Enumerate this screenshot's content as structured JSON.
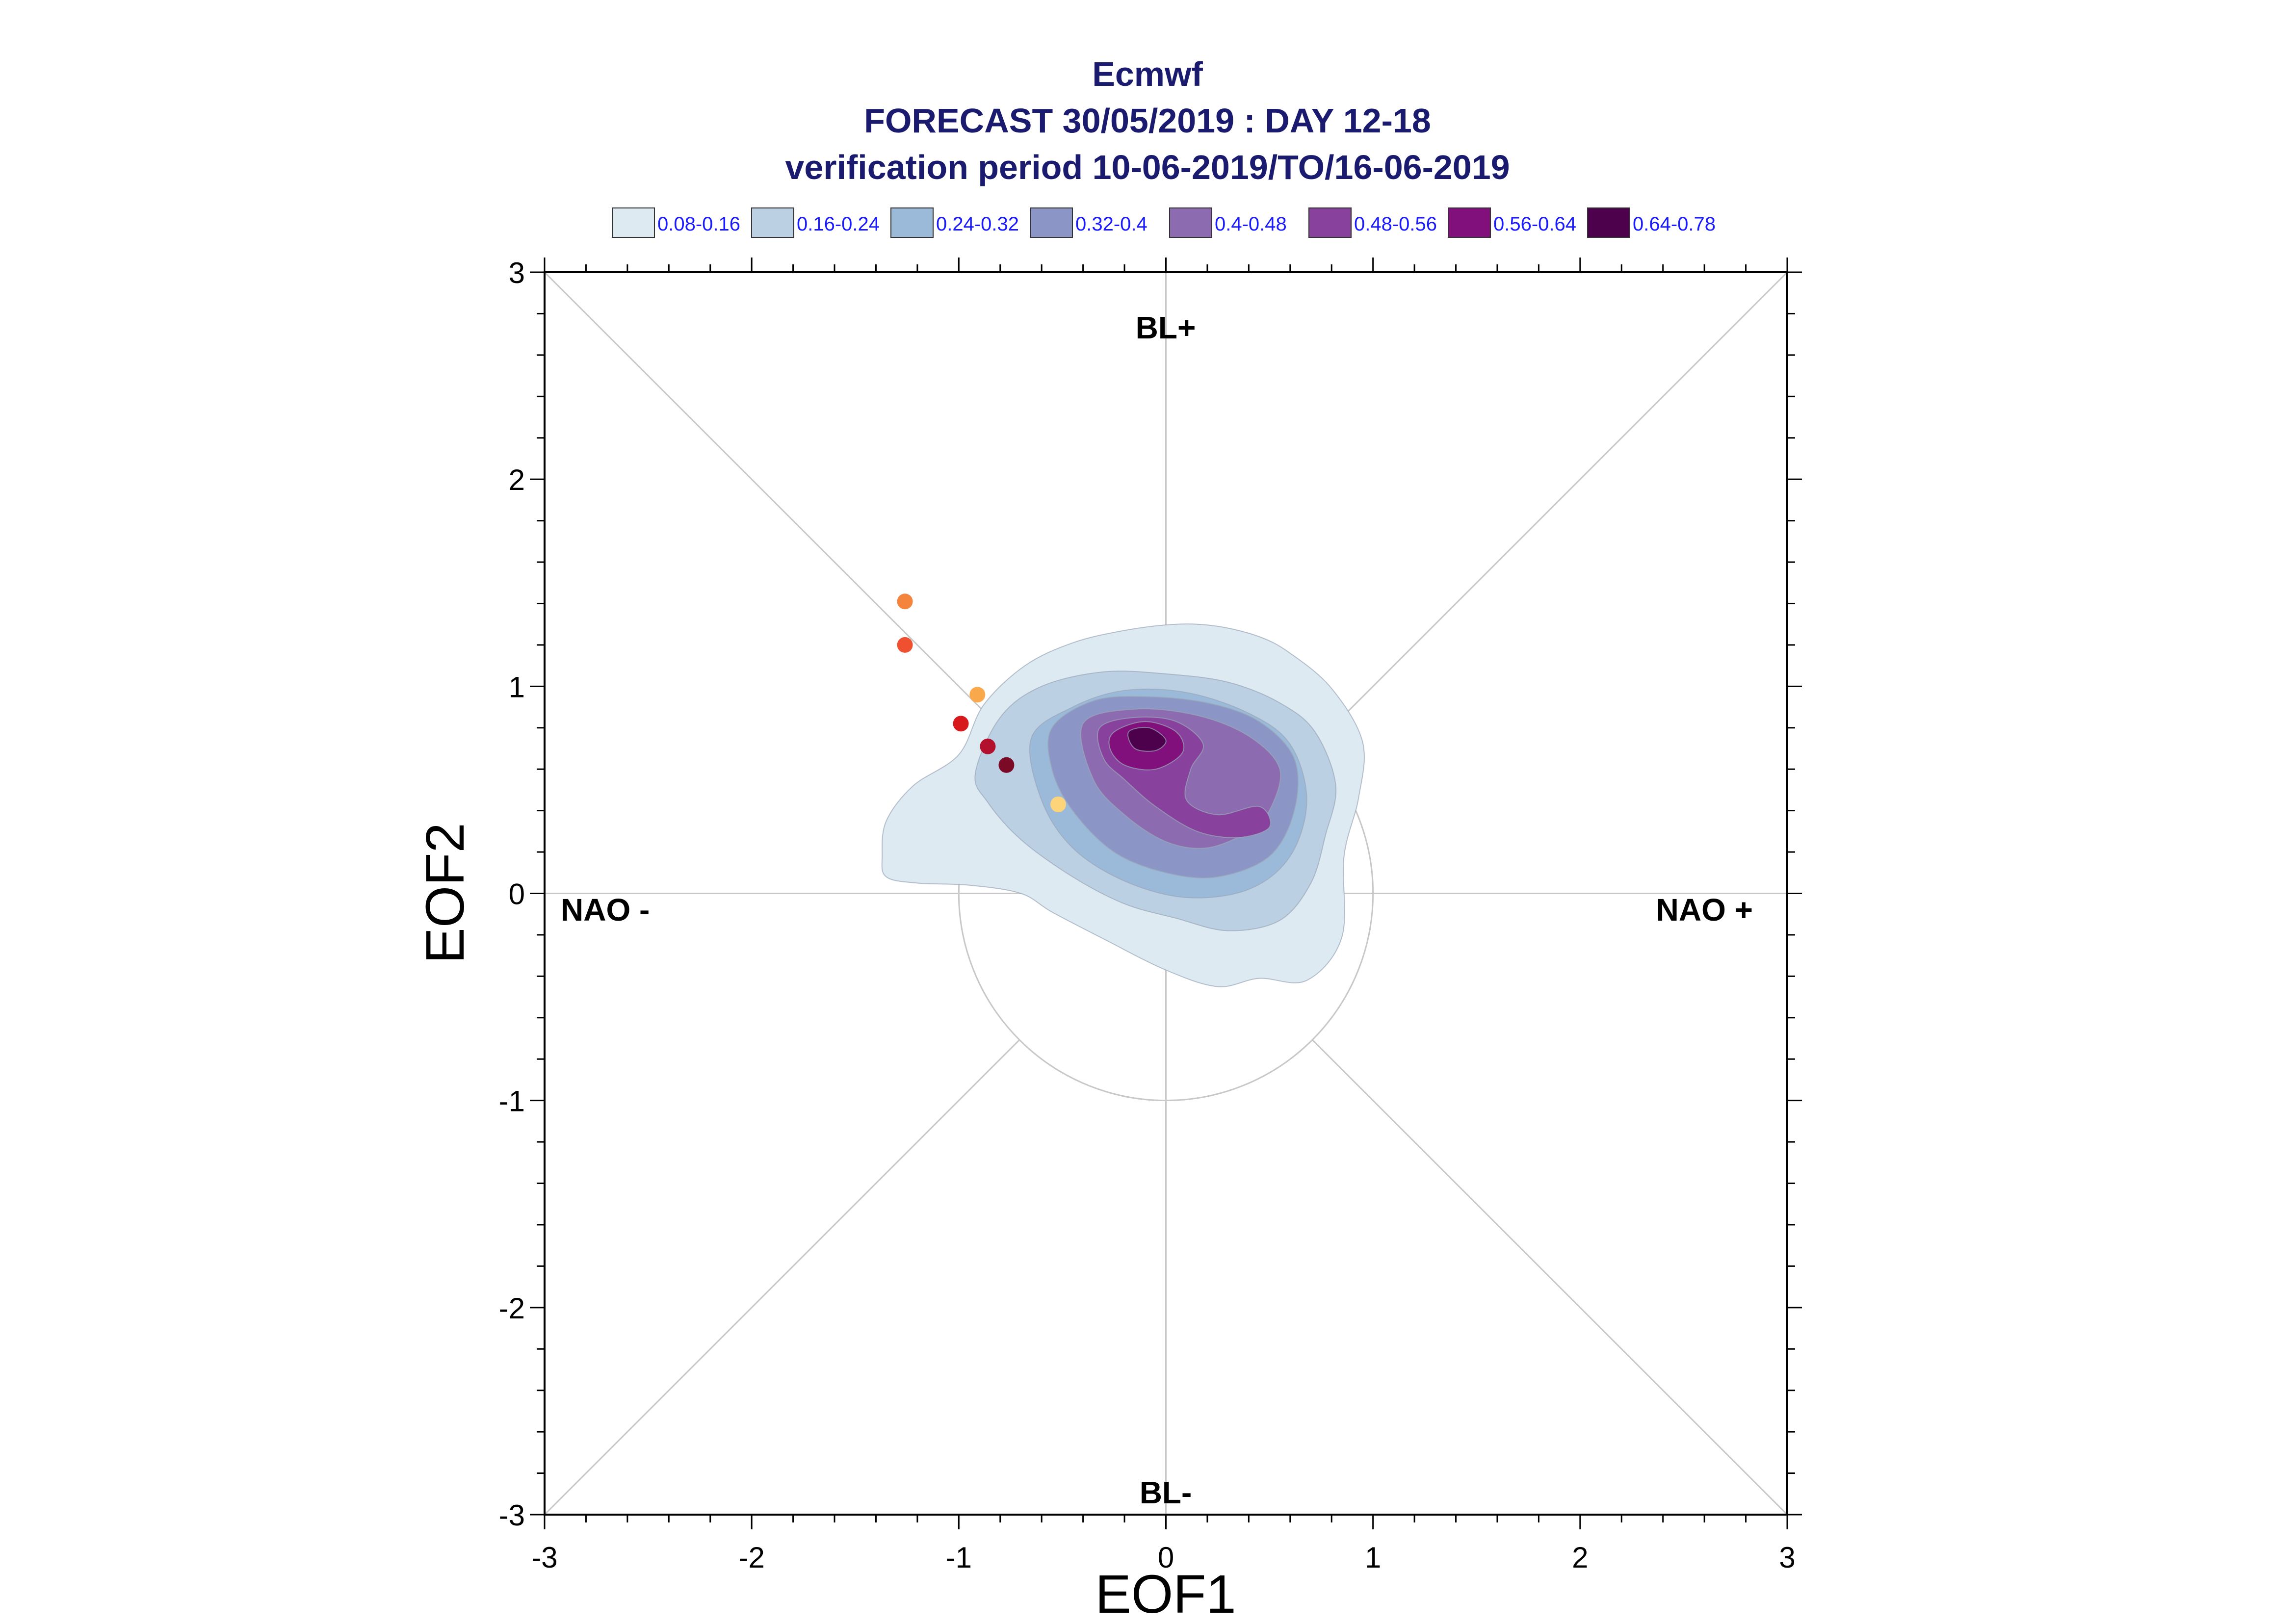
{
  "chart_data": {
    "type": "scatter",
    "title": "Ecmwf",
    "subtitle": "FORECAST 30/05/2019 : DAY 12-18",
    "subtitle2": "verification period 10-06-2019/TO/16-06-2019",
    "xlabel": "EOF1",
    "ylabel": "EOF2",
    "xlim": [
      -3,
      3
    ],
    "ylim": [
      -3,
      3
    ],
    "x_ticks": [
      "-3",
      "-2",
      "-1",
      "0",
      "1",
      "2",
      "3"
    ],
    "y_ticks": [
      "-3",
      "-2",
      "-1",
      "0",
      "1",
      "2",
      "3"
    ],
    "grid": false,
    "legend_position": "top",
    "regime_labels": {
      "top": "BL+",
      "bottom": "BL-",
      "left": "NAO -",
      "right": "NAO +"
    },
    "density_levels": [
      {
        "label": "0.08-0.16",
        "color": "#deeaf2"
      },
      {
        "label": "0.16-0.24",
        "color": "#bcd0e3"
      },
      {
        "label": "0.24-0.32",
        "color": "#9bbad9"
      },
      {
        "label": "0.32-0.4",
        "color": "#8c96c6"
      },
      {
        "label": "0.4-0.48",
        "color": "#8c6bb1"
      },
      {
        "label": "0.48-0.56",
        "color": "#88419d"
      },
      {
        "label": "0.56-0.64",
        "color": "#810f7c"
      },
      {
        "label": "0.64-0.78",
        "color": "#4d004b"
      }
    ],
    "points": [
      {
        "x": -1.26,
        "y": 1.41,
        "color": "#f4843c"
      },
      {
        "x": -1.26,
        "y": 1.2,
        "color": "#ef5130"
      },
      {
        "x": -0.91,
        "y": 0.96,
        "color": "#f9a94b"
      },
      {
        "x": -0.99,
        "y": 0.82,
        "color": "#d7191c"
      },
      {
        "x": -0.86,
        "y": 0.71,
        "color": "#b2102d"
      },
      {
        "x": -0.77,
        "y": 0.62,
        "color": "#7a0a26"
      },
      {
        "x": -0.52,
        "y": 0.43,
        "color": "#fdd47a"
      }
    ],
    "density_contours": [
      [
        [
          -1.37,
          0.18
        ],
        [
          -1.35,
          0.35
        ],
        [
          -1.22,
          0.52
        ],
        [
          -1.0,
          0.67
        ],
        [
          -0.88,
          0.91
        ],
        [
          -0.68,
          1.1
        ],
        [
          -0.45,
          1.21
        ],
        [
          -0.2,
          1.27
        ],
        [
          0.05,
          1.3
        ],
        [
          0.25,
          1.29
        ],
        [
          0.45,
          1.24
        ],
        [
          0.6,
          1.16
        ],
        [
          0.8,
          0.99
        ],
        [
          0.95,
          0.73
        ],
        [
          0.93,
          0.46
        ],
        [
          0.86,
          0.18
        ],
        [
          0.85,
          -0.21
        ],
        [
          0.68,
          -0.42
        ],
        [
          0.45,
          -0.41
        ],
        [
          0.25,
          -0.45
        ],
        [
          0.0,
          -0.37
        ],
        [
          -0.3,
          -0.22
        ],
        [
          -0.55,
          -0.09
        ],
        [
          -0.7,
          0.0
        ],
        [
          -0.95,
          0.04
        ],
        [
          -1.2,
          0.05
        ],
        [
          -1.35,
          0.08
        ]
      ],
      [
        [
          -0.92,
          0.58
        ],
        [
          -0.8,
          0.85
        ],
        [
          -0.6,
          1.0
        ],
        [
          -0.3,
          1.07
        ],
        [
          0.0,
          1.06
        ],
        [
          0.3,
          1.02
        ],
        [
          0.55,
          0.92
        ],
        [
          0.72,
          0.78
        ],
        [
          0.82,
          0.52
        ],
        [
          0.77,
          0.28
        ],
        [
          0.7,
          0.05
        ],
        [
          0.55,
          -0.13
        ],
        [
          0.3,
          -0.18
        ],
        [
          0.05,
          -0.12
        ],
        [
          -0.2,
          -0.05
        ],
        [
          -0.45,
          0.08
        ],
        [
          -0.7,
          0.26
        ],
        [
          -0.86,
          0.44
        ]
      ],
      [
        [
          -0.65,
          0.75
        ],
        [
          -0.45,
          0.9
        ],
        [
          -0.2,
          0.98
        ],
        [
          0.1,
          0.97
        ],
        [
          0.4,
          0.87
        ],
        [
          0.6,
          0.72
        ],
        [
          0.68,
          0.45
        ],
        [
          0.6,
          0.18
        ],
        [
          0.4,
          0.02
        ],
        [
          0.1,
          -0.02
        ],
        [
          -0.2,
          0.06
        ],
        [
          -0.45,
          0.22
        ],
        [
          -0.6,
          0.45
        ]
      ],
      [
        [
          -0.55,
          0.8
        ],
        [
          -0.35,
          0.93
        ],
        [
          -0.1,
          0.95
        ],
        [
          0.2,
          0.92
        ],
        [
          0.45,
          0.83
        ],
        [
          0.62,
          0.65
        ],
        [
          0.62,
          0.4
        ],
        [
          0.5,
          0.18
        ],
        [
          0.25,
          0.08
        ],
        [
          0.0,
          0.1
        ],
        [
          -0.25,
          0.2
        ],
        [
          -0.45,
          0.4
        ],
        [
          -0.55,
          0.6
        ]
      ],
      [
        [
          -0.4,
          0.82
        ],
        [
          -0.15,
          0.89
        ],
        [
          0.15,
          0.86
        ],
        [
          0.4,
          0.76
        ],
        [
          0.55,
          0.6
        ],
        [
          0.5,
          0.4
        ],
        [
          0.4,
          0.3
        ],
        [
          0.2,
          0.22
        ],
        [
          0.0,
          0.25
        ],
        [
          -0.2,
          0.38
        ],
        [
          -0.35,
          0.55
        ]
      ],
      [
        [
          -0.32,
          0.8
        ],
        [
          -0.15,
          0.85
        ],
        [
          0.05,
          0.83
        ],
        [
          0.18,
          0.72
        ],
        [
          0.12,
          0.6
        ],
        [
          0.1,
          0.45
        ],
        [
          0.25,
          0.38
        ],
        [
          0.45,
          0.42
        ],
        [
          0.5,
          0.32
        ],
        [
          0.35,
          0.27
        ],
        [
          0.15,
          0.3
        ],
        [
          -0.05,
          0.42
        ],
        [
          -0.2,
          0.55
        ],
        [
          -0.3,
          0.65
        ]
      ],
      [
        [
          -0.25,
          0.78
        ],
        [
          -0.1,
          0.83
        ],
        [
          0.05,
          0.78
        ],
        [
          0.08,
          0.68
        ],
        [
          -0.05,
          0.6
        ],
        [
          -0.2,
          0.62
        ],
        [
          -0.27,
          0.7
        ]
      ],
      [
        [
          -0.18,
          0.78
        ],
        [
          -0.08,
          0.8
        ],
        [
          0.0,
          0.74
        ],
        [
          -0.05,
          0.69
        ],
        [
          -0.15,
          0.7
        ]
      ]
    ]
  }
}
